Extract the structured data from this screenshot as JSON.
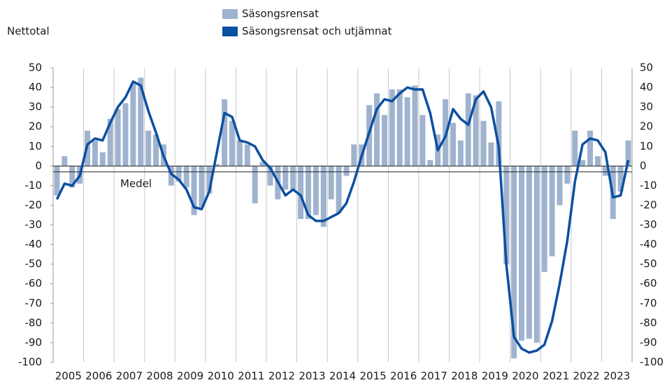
{
  "chart_data": {
    "type": "bar_line",
    "y_axis_label": "Nettotal",
    "years": [
      "2005",
      "2006",
      "2007",
      "2008",
      "2009",
      "2010",
      "2011",
      "2012",
      "2013",
      "2014",
      "2015",
      "2016",
      "2017",
      "2018",
      "2019",
      "2020",
      "2021",
      "2022",
      "2023"
    ],
    "ylim": [
      -100,
      50
    ],
    "yticks": [
      50,
      40,
      30,
      20,
      10,
      0,
      -10,
      -20,
      -30,
      -40,
      -50,
      -60,
      -70,
      -80,
      -90,
      -100
    ],
    "mean": -3,
    "mean_label": "Medel",
    "series": [
      {
        "name": "Säsongsrensat",
        "type": "bar",
        "color": "#9fb3cf",
        "values": [
          -15,
          5,
          -11,
          -9,
          18,
          13,
          7,
          24,
          29,
          32,
          42,
          45,
          18,
          16,
          11,
          -10,
          -8,
          -11,
          -25,
          -21,
          -14,
          1,
          34,
          23,
          13,
          11,
          -19,
          2,
          -10,
          -17,
          -12,
          -12,
          -27,
          -27,
          -25,
          -31,
          -17,
          -24,
          -5,
          11,
          11,
          31,
          37,
          26,
          39,
          39,
          35,
          41,
          26,
          3,
          16,
          34,
          22,
          13,
          37,
          36,
          23,
          12,
          33,
          -50,
          -98,
          -89,
          -88,
          -90,
          -54,
          -46,
          -20,
          -9,
          18,
          3,
          18,
          5,
          -5,
          -27,
          -13,
          13
        ]
      },
      {
        "name": "Säsongsrensat och utjämnat",
        "type": "line",
        "color": "#0b4fa0",
        "values": [
          -17,
          -9,
          -10,
          -5,
          11,
          14,
          13,
          22,
          30,
          35,
          43,
          41,
          28,
          17,
          5,
          -4,
          -7,
          -12,
          -21,
          -22,
          -13,
          7,
          27,
          25,
          13,
          12,
          10,
          3,
          -1,
          -8,
          -15,
          -12,
          -15,
          -25,
          -28,
          -28,
          -26,
          -24,
          -19,
          -8,
          5,
          17,
          29,
          34,
          33,
          37,
          40,
          39,
          39,
          27,
          8,
          15,
          29,
          24,
          21,
          34,
          38,
          30,
          10,
          -50,
          -87,
          -93,
          -95,
          -94,
          -91,
          -79,
          -60,
          -38,
          -8,
          11,
          14,
          13,
          7,
          -16,
          -15,
          3
        ]
      }
    ]
  }
}
